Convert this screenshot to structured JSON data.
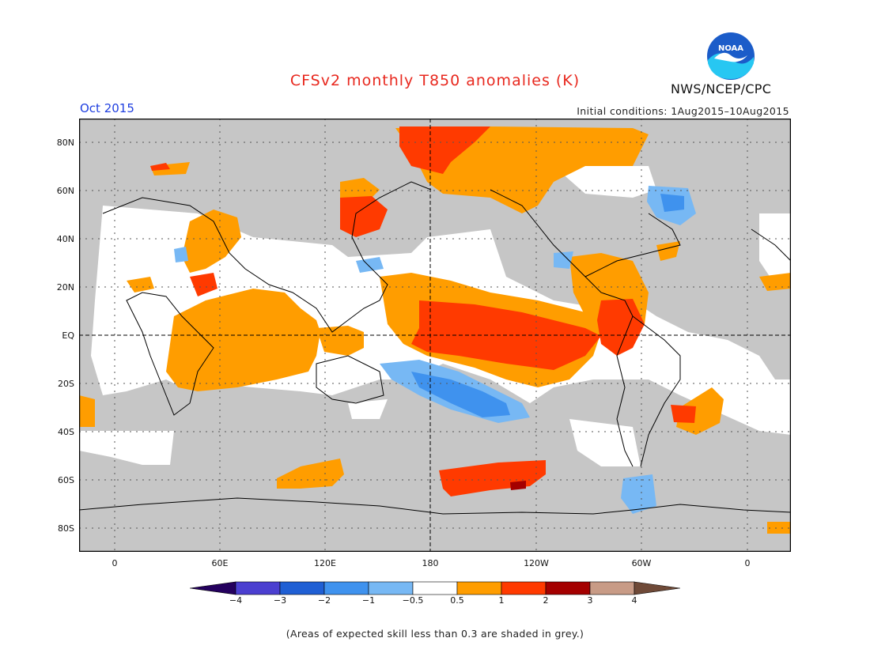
{
  "header": {
    "title": "CFSv2 monthly T850 anomalies (K)",
    "target_month": "Oct 2015",
    "initial_conditions": "Initial conditions: 1Aug2015–10Aug2015",
    "organization": "NWS/NCEP/CPC",
    "logo_text": "NOAA",
    "logo_icon": "noaa-logo"
  },
  "map": {
    "y_labels": [
      "80N",
      "60N",
      "40N",
      "20N",
      "EQ",
      "20S",
      "40S",
      "60S",
      "80S"
    ],
    "x_labels": [
      "0",
      "60E",
      "120E",
      "180",
      "120W",
      "60W",
      "0"
    ],
    "grey_meaning": "skill < 0.3"
  },
  "colorbar": {
    "labels": [
      "−4",
      "−3",
      "−2",
      "−1",
      "−0.5",
      "0.5",
      "1",
      "2",
      "3",
      "4"
    ],
    "colors": {
      "lt_m4": "#24005e",
      "m4_m3": "#4b3fd0",
      "m3_m2": "#1f5fd4",
      "m2_m1": "#3f92ee",
      "m1_m05": "#77b8f4",
      "neutral": "#ffffff",
      "p05_p1": "#ff9d00",
      "p1_p2": "#ff3a00",
      "p2_p3": "#a40000",
      "p3_p4": "#c89b86",
      "gt_p4": "#6f4a38"
    }
  },
  "footnote": "(Areas of expected skill less than 0.3 are shaded in grey.)"
}
